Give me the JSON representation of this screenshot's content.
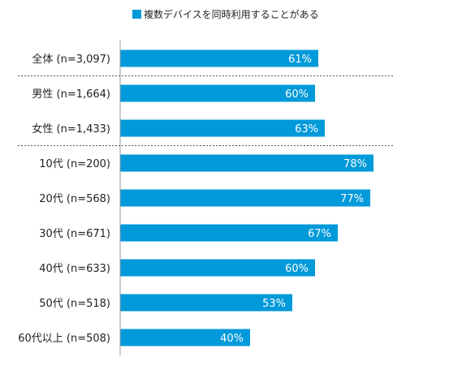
{
  "chart_data": {
    "type": "bar",
    "orientation": "horizontal",
    "legend": {
      "label": "複数デバイスを同時利用することがある",
      "color": "#0099D9",
      "placement": "top"
    },
    "categories": [
      "全体 (n=3,097)",
      "男性 (n=1,664)",
      "女性 (n=1,433)",
      "10代 (n=200)",
      "20代 (n=568)",
      "30代 (n=671)",
      "40代 (n=633)",
      "50代 (n=518)",
      "60代以上 (n=508)"
    ],
    "series": [
      {
        "name": "複数デバイスを同時利用することがある",
        "values": [
          61,
          60,
          63,
          78,
          77,
          67,
          60,
          53,
          40
        ]
      }
    ],
    "data_labels": [
      "61%",
      "60%",
      "63%",
      "78%",
      "77%",
      "67%",
      "60%",
      "53%",
      "40%"
    ],
    "group_separators_after": [
      0,
      2
    ],
    "xlim": [
      0,
      100
    ],
    "grid": false
  }
}
